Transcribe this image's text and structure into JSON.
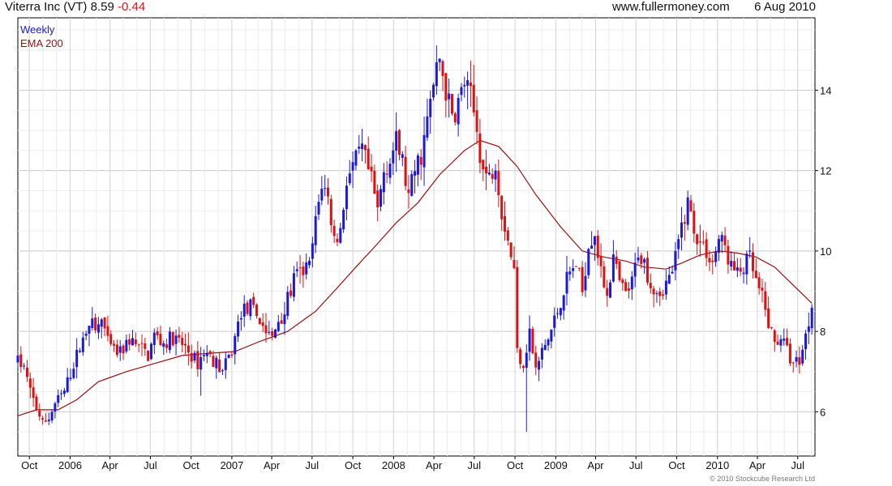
{
  "header": {
    "title": "Viterra Inc (VT)",
    "last": "8.59",
    "change": "-0.44",
    "site": "www.fullermoney.com",
    "date": "6 Aug 2010"
  },
  "copyright": "© 2010 Stockcube Research Ltd",
  "colors": {
    "up": "#1a1ad8",
    "down": "#dd1111",
    "ema": "#990f0f",
    "grid": "#d8d8d8",
    "axis": "#000000"
  },
  "chart_data": {
    "type": "candlestick",
    "frequency": "weekly",
    "legend": [
      {
        "label": "Weekly",
        "color": "#1a1ad8"
      },
      {
        "label": "EMA 200",
        "color": "#990f0f"
      }
    ],
    "y_ticks": [
      6,
      8,
      10,
      12,
      14
    ],
    "ylim": [
      4.9,
      15.8
    ],
    "xlim": [
      "2005-09-05",
      "2010-08-09"
    ],
    "x_ticks": [
      {
        "label": "Oct",
        "date": "2005-10-01"
      },
      {
        "label": "2006",
        "date": "2006-01-01"
      },
      {
        "label": "Apr",
        "date": "2006-04-01"
      },
      {
        "label": "Jul",
        "date": "2006-07-01"
      },
      {
        "label": "Oct",
        "date": "2006-10-01"
      },
      {
        "label": "2007",
        "date": "2007-01-01"
      },
      {
        "label": "Apr",
        "date": "2007-04-01"
      },
      {
        "label": "Jul",
        "date": "2007-07-01"
      },
      {
        "label": "Oct",
        "date": "2007-10-01"
      },
      {
        "label": "2008",
        "date": "2008-01-01"
      },
      {
        "label": "Apr",
        "date": "2008-04-01"
      },
      {
        "label": "Jul",
        "date": "2008-07-01"
      },
      {
        "label": "Oct",
        "date": "2008-10-01"
      },
      {
        "label": "2009",
        "date": "2009-01-01"
      },
      {
        "label": "Apr",
        "date": "2009-04-01"
      },
      {
        "label": "Jul",
        "date": "2009-07-01"
      },
      {
        "label": "Oct",
        "date": "2009-10-01"
      },
      {
        "label": "2010",
        "date": "2010-01-01"
      },
      {
        "label": "Apr",
        "date": "2010-04-01"
      },
      {
        "label": "Jul",
        "date": "2010-07-01"
      }
    ],
    "price_keypoints": [
      [
        "2005-09-05",
        7.25
      ],
      [
        "2005-09-19",
        7.1
      ],
      [
        "2005-10-03",
        6.5
      ],
      [
        "2005-10-17",
        6.1
      ],
      [
        "2005-10-31",
        5.7
      ],
      [
        "2005-11-14",
        5.85
      ],
      [
        "2005-11-28",
        6.2
      ],
      [
        "2005-12-19",
        6.5
      ],
      [
        "2006-01-09",
        7.2
      ],
      [
        "2006-01-30",
        7.8
      ],
      [
        "2006-02-13",
        8.3
      ],
      [
        "2006-02-27",
        8.0
      ],
      [
        "2006-03-13",
        8.3
      ],
      [
        "2006-03-27",
        7.7
      ],
      [
        "2006-04-10",
        7.5
      ],
      [
        "2006-04-24",
        7.45
      ],
      [
        "2006-05-15",
        7.8
      ],
      [
        "2006-06-05",
        7.6
      ],
      [
        "2006-06-26",
        7.4
      ],
      [
        "2006-07-10",
        7.9
      ],
      [
        "2006-07-31",
        7.7
      ],
      [
        "2006-08-21",
        7.85
      ],
      [
        "2006-09-18",
        7.6
      ],
      [
        "2006-10-02",
        7.4
      ],
      [
        "2006-10-16",
        7.2
      ],
      [
        "2006-10-30",
        7.5
      ],
      [
        "2006-11-20",
        7.3
      ],
      [
        "2006-12-11",
        7.0
      ],
      [
        "2007-01-01",
        7.5
      ],
      [
        "2007-01-22",
        8.5
      ],
      [
        "2007-02-12",
        8.6
      ],
      [
        "2007-03-05",
        8.3
      ],
      [
        "2007-03-19",
        8.0
      ],
      [
        "2007-04-02",
        7.8
      ],
      [
        "2007-04-16",
        8.3
      ],
      [
        "2007-04-30",
        8.5
      ],
      [
        "2007-05-21",
        9.3
      ],
      [
        "2007-06-11",
        9.5
      ],
      [
        "2007-06-25",
        9.6
      ],
      [
        "2007-07-09",
        10.7
      ],
      [
        "2007-07-23",
        11.7
      ],
      [
        "2007-08-06",
        11.3
      ],
      [
        "2007-08-20",
        10.3
      ],
      [
        "2007-09-03",
        10.5
      ],
      [
        "2007-09-17",
        11.8
      ],
      [
        "2007-10-08",
        12.2
      ],
      [
        "2007-10-22",
        12.5
      ],
      [
        "2007-11-12",
        11.7
      ],
      [
        "2007-11-26",
        11.0
      ],
      [
        "2007-12-10",
        12.0
      ],
      [
        "2007-12-24",
        12.3
      ],
      [
        "2008-01-07",
        12.7
      ],
      [
        "2008-01-21",
        12.2
      ],
      [
        "2008-02-04",
        11.3
      ],
      [
        "2008-02-18",
        12.0
      ],
      [
        "2008-03-03",
        12.4
      ],
      [
        "2008-03-17",
        13.2
      ],
      [
        "2008-03-31",
        14.1
      ],
      [
        "2008-04-14",
        14.8
      ],
      [
        "2008-04-28",
        14.0
      ],
      [
        "2008-05-12",
        13.3
      ],
      [
        "2008-05-26",
        13.7
      ],
      [
        "2008-06-09",
        14.2
      ],
      [
        "2008-06-23",
        13.8
      ],
      [
        "2008-07-07",
        13.0
      ],
      [
        "2008-07-21",
        12.0
      ],
      [
        "2008-08-04",
        11.8
      ],
      [
        "2008-08-18",
        12.3
      ],
      [
        "2008-09-01",
        11.0
      ],
      [
        "2008-09-15",
        10.3
      ],
      [
        "2008-09-29",
        9.5
      ],
      [
        "2008-10-06",
        7.5
      ],
      [
        "2008-10-20",
        7.2
      ],
      [
        "2008-11-03",
        8.0
      ],
      [
        "2008-11-17",
        7.0
      ],
      [
        "2008-12-01",
        7.5
      ],
      [
        "2008-12-15",
        7.8
      ],
      [
        "2009-01-05",
        8.5
      ],
      [
        "2009-01-26",
        9.3
      ],
      [
        "2009-02-16",
        9.7
      ],
      [
        "2009-03-02",
        9.0
      ],
      [
        "2009-03-16",
        10.2
      ],
      [
        "2009-03-30",
        10.5
      ],
      [
        "2009-04-13",
        9.4
      ],
      [
        "2009-04-27",
        9.0
      ],
      [
        "2009-05-11",
        9.8
      ],
      [
        "2009-05-25",
        9.2
      ],
      [
        "2009-06-08",
        8.9
      ],
      [
        "2009-06-22",
        9.2
      ],
      [
        "2009-07-06",
        10.0
      ],
      [
        "2009-07-20",
        9.7
      ],
      [
        "2009-08-03",
        9.2
      ],
      [
        "2009-08-24",
        9.0
      ],
      [
        "2009-09-14",
        9.3
      ],
      [
        "2009-09-28",
        9.8
      ],
      [
        "2009-10-12",
        10.6
      ],
      [
        "2009-10-26",
        11.2
      ],
      [
        "2009-11-09",
        10.6
      ],
      [
        "2009-11-23",
        10.2
      ],
      [
        "2009-12-07",
        10.0
      ],
      [
        "2009-12-21",
        9.7
      ],
      [
        "2010-01-04",
        10.3
      ],
      [
        "2010-01-18",
        10.1
      ],
      [
        "2010-02-01",
        9.6
      ],
      [
        "2010-02-15",
        9.4
      ],
      [
        "2010-03-01",
        9.6
      ],
      [
        "2010-03-15",
        9.8
      ],
      [
        "2010-03-29",
        9.2
      ],
      [
        "2010-04-12",
        8.8
      ],
      [
        "2010-04-26",
        8.2
      ],
      [
        "2010-05-10",
        7.7
      ],
      [
        "2010-05-24",
        7.9
      ],
      [
        "2010-06-07",
        7.5
      ],
      [
        "2010-06-21",
        7.2
      ],
      [
        "2010-07-05",
        7.3
      ],
      [
        "2010-07-19",
        7.9
      ],
      [
        "2010-08-02",
        8.59
      ]
    ],
    "ema200": [
      [
        "2005-09-05",
        5.9
      ],
      [
        "2005-10-17",
        6.05
      ],
      [
        "2005-12-05",
        6.05
      ],
      [
        "2006-01-16",
        6.3
      ],
      [
        "2006-03-06",
        6.75
      ],
      [
        "2006-05-08",
        7.0
      ],
      [
        "2006-07-10",
        7.2
      ],
      [
        "2006-09-11",
        7.4
      ],
      [
        "2006-11-06",
        7.45
      ],
      [
        "2007-01-08",
        7.5
      ],
      [
        "2007-03-05",
        7.75
      ],
      [
        "2007-05-07",
        8.0
      ],
      [
        "2007-07-09",
        8.5
      ],
      [
        "2007-08-20",
        9.0
      ],
      [
        "2007-10-08",
        9.6
      ],
      [
        "2007-11-19",
        10.1
      ],
      [
        "2008-01-07",
        10.7
      ],
      [
        "2008-02-25",
        11.2
      ],
      [
        "2008-04-14",
        11.9
      ],
      [
        "2008-06-09",
        12.5
      ],
      [
        "2008-07-14",
        12.75
      ],
      [
        "2008-08-25",
        12.6
      ],
      [
        "2008-10-06",
        12.1
      ],
      [
        "2008-11-17",
        11.4
      ],
      [
        "2009-01-12",
        10.6
      ],
      [
        "2009-03-02",
        10.0
      ],
      [
        "2009-04-20",
        9.85
      ],
      [
        "2009-06-08",
        9.75
      ],
      [
        "2009-07-20",
        9.6
      ],
      [
        "2009-09-07",
        9.55
      ],
      [
        "2009-10-12",
        9.7
      ],
      [
        "2009-11-23",
        9.9
      ],
      [
        "2010-01-04",
        10.0
      ],
      [
        "2010-02-15",
        9.95
      ],
      [
        "2010-03-29",
        9.85
      ],
      [
        "2010-05-10",
        9.6
      ],
      [
        "2010-06-21",
        9.15
      ],
      [
        "2010-08-02",
        8.7
      ]
    ],
    "spikes": [
      {
        "date": "2008-10-27",
        "low": 5.5
      },
      {
        "date": "2008-09-01",
        "low": 10.5
      },
      {
        "date": "2006-10-23",
        "low": 6.4
      }
    ],
    "last_close": 8.59
  }
}
